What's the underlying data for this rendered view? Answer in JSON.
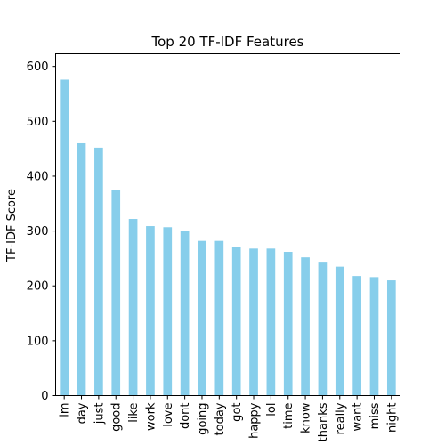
{
  "chart_data": {
    "type": "bar",
    "title": "Top 20 TF-IDF Features",
    "xlabel": "",
    "ylabel": "TF-IDF Score",
    "categories": [
      "im",
      "day",
      "just",
      "good",
      "like",
      "work",
      "love",
      "dont",
      "going",
      "today",
      "got",
      "happy",
      "lol",
      "time",
      "know",
      "thanks",
      "really",
      "want",
      "miss",
      "night"
    ],
    "values": [
      576,
      460,
      452,
      375,
      322,
      309,
      307,
      300,
      282,
      282,
      271,
      268,
      268,
      262,
      252,
      244,
      235,
      218,
      216,
      210
    ],
    "ylim": [
      0,
      623
    ],
    "yticks": [
      0,
      100,
      200,
      300,
      400,
      500,
      600
    ],
    "bar_color": "#87ceeb",
    "grid": false,
    "legend": "none"
  }
}
